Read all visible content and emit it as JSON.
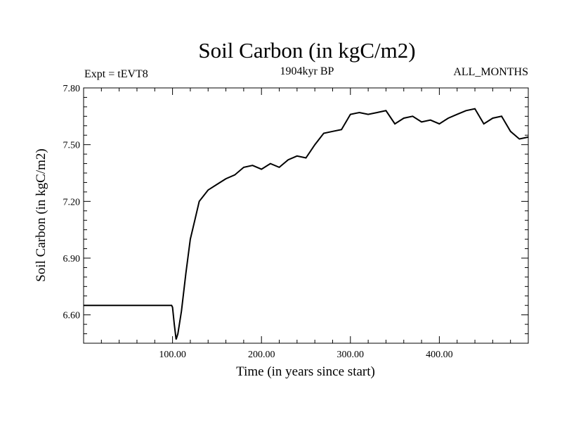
{
  "chart_data": {
    "type": "line",
    "title": "Soil Carbon (in kgC/m2)",
    "subtitle_left": "Expt = tEVT8",
    "subtitle_center": "1904kyr BP",
    "subtitle_right": "ALL_MONTHS",
    "xlabel": "Time (in years since start)",
    "ylabel": "Soil Carbon (in kgC/m2)",
    "xlim": [
      0,
      500
    ],
    "ylim": [
      6.45,
      7.8
    ],
    "x_ticks": [
      100,
      200,
      300,
      400
    ],
    "x_tick_labels": [
      "100.00",
      "200.00",
      "300.00",
      "400.00"
    ],
    "y_ticks": [
      6.6,
      6.9,
      7.2,
      7.5,
      7.8
    ],
    "y_tick_labels": [
      "6.60",
      "6.90",
      "7.20",
      "7.50",
      "7.80"
    ],
    "series": [
      {
        "name": "Soil Carbon",
        "x": [
          0,
          99,
          100,
          102,
          104,
          106,
          110,
          115,
          120,
          125,
          130,
          140,
          150,
          160,
          170,
          180,
          190,
          200,
          210,
          220,
          230,
          240,
          250,
          260,
          270,
          280,
          290,
          300,
          310,
          320,
          330,
          340,
          350,
          360,
          370,
          380,
          390,
          400,
          410,
          420,
          430,
          440,
          450,
          460,
          470,
          480,
          490,
          500
        ],
        "y": [
          6.65,
          6.65,
          6.64,
          6.55,
          6.47,
          6.5,
          6.62,
          6.82,
          7.0,
          7.1,
          7.2,
          7.26,
          7.29,
          7.32,
          7.34,
          7.38,
          7.39,
          7.37,
          7.4,
          7.38,
          7.42,
          7.44,
          7.43,
          7.5,
          7.56,
          7.57,
          7.58,
          7.66,
          7.67,
          7.66,
          7.67,
          7.68,
          7.61,
          7.64,
          7.65,
          7.62,
          7.63,
          7.61,
          7.64,
          7.66,
          7.68,
          7.69,
          7.61,
          7.64,
          7.65,
          7.57,
          7.53,
          7.54
        ]
      }
    ]
  }
}
